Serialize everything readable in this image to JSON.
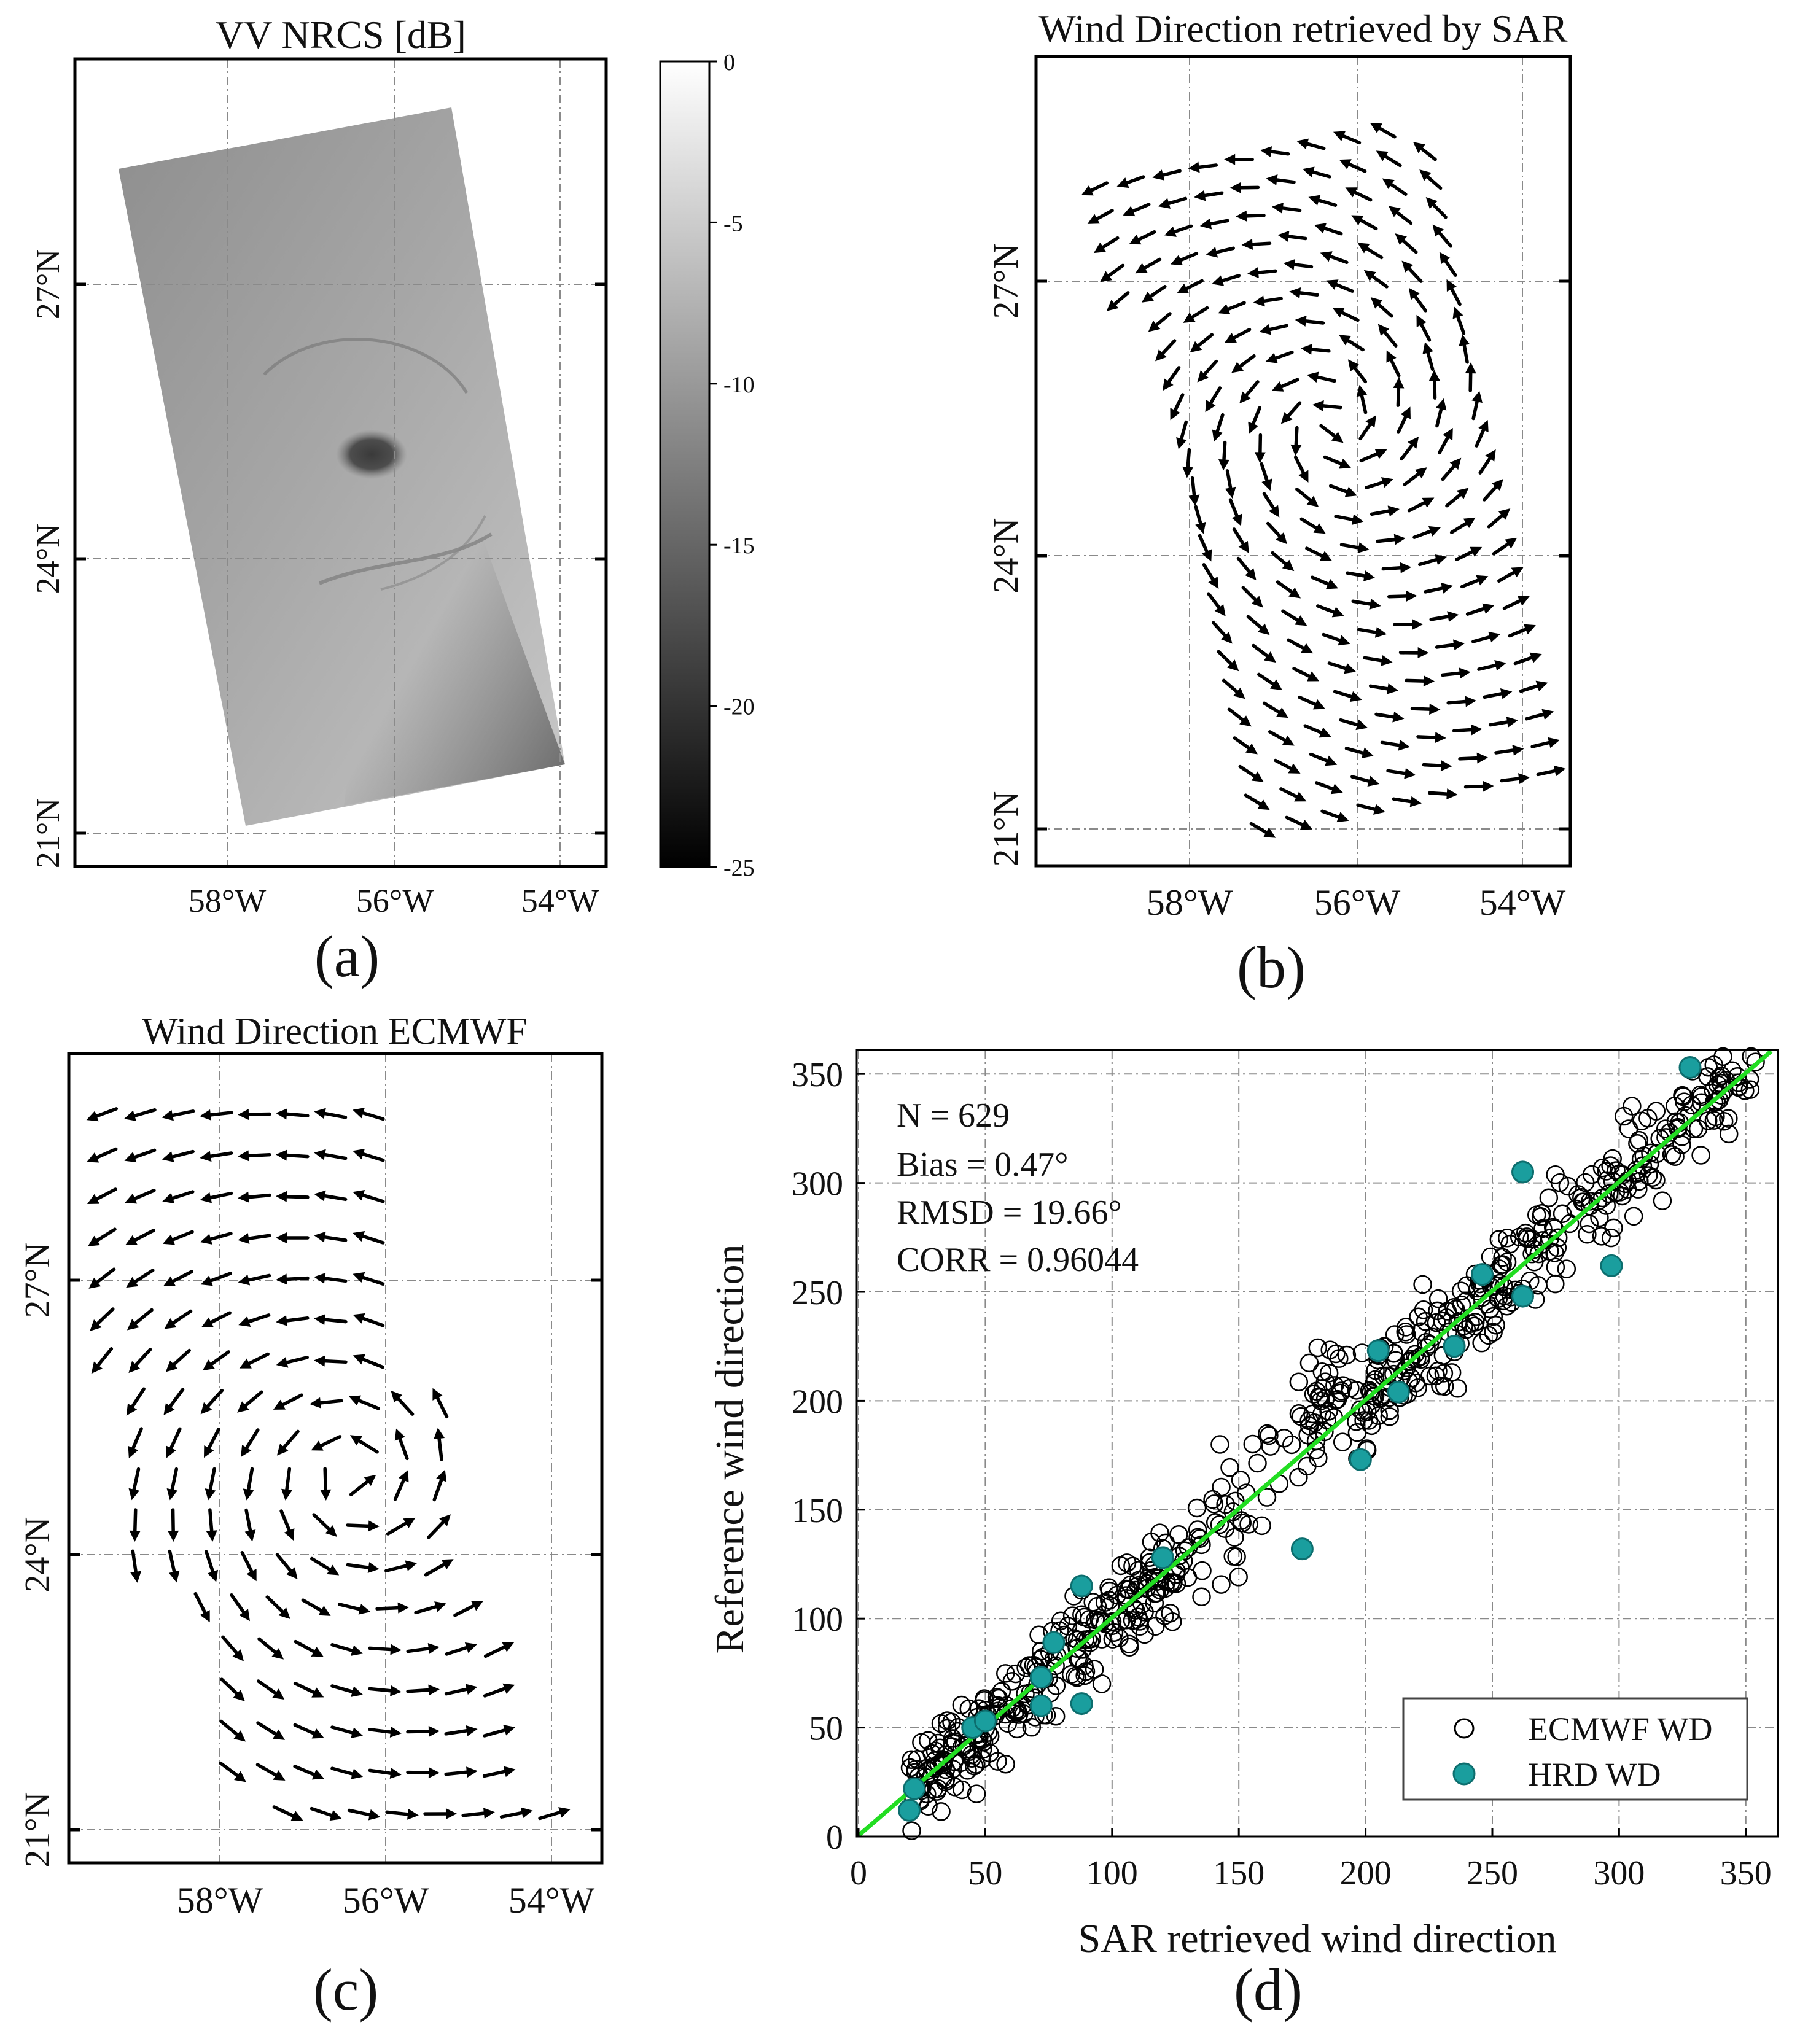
{
  "panel_a": {
    "title": "VV NRCS [dB]",
    "label": "(a)",
    "colorbar_ticks": [
      "0",
      "-5",
      "-10",
      "-15",
      "-20",
      "-25"
    ],
    "lat_ticks": [
      "27°N",
      "24°N",
      "21°N"
    ],
    "lon_ticks": [
      "58°W",
      "56°W",
      "54°W"
    ]
  },
  "panel_b": {
    "title": "Wind Direction retrieved by SAR",
    "label": "(b)",
    "lat_ticks": [
      "27°N",
      "24°N",
      "21°N"
    ],
    "lon_ticks": [
      "58°W",
      "56°W",
      "54°W"
    ]
  },
  "panel_c": {
    "title": "Wind Direction ECMWF",
    "label": "(c)",
    "lat_ticks": [
      "27°N",
      "24°N",
      "21°N"
    ],
    "lon_ticks": [
      "58°W",
      "56°W",
      "54°W"
    ]
  },
  "panel_d": {
    "label": "(d)",
    "stats": {
      "n": "N = 629",
      "bias": "Bias = 0.47°",
      "rmsd": "RMSD = 19.66°",
      "corr": "CORR = 0.96044"
    },
    "legend": {
      "ecmwf": "ECMWF WD",
      "hrd": "HRD WD"
    }
  },
  "colors": {
    "hrd": "#1a9e9e",
    "fit_line": "#22dd22"
  },
  "chart_data": [
    {
      "type": "image",
      "title": "VV NRCS [dB]",
      "colorbar_range": [
        -25,
        0
      ],
      "x_ticks": [
        "58°W",
        "56°W",
        "54°W"
      ],
      "y_ticks": [
        "27°N",
        "24°N",
        "21°N"
      ]
    },
    {
      "type": "quiver",
      "title": "Wind Direction retrieved by SAR",
      "x_ticks": [
        "58°W",
        "56°W",
        "54°W"
      ],
      "y_ticks": [
        "27°N",
        "24°N",
        "21°N"
      ],
      "vortex_center_deg": {
        "lon": -56.6,
        "lat": 25.3
      }
    },
    {
      "type": "quiver",
      "title": "Wind Direction ECMWF",
      "x_ticks": [
        "58°W",
        "56°W",
        "54°W"
      ],
      "y_ticks": [
        "27°N",
        "24°N",
        "21°N"
      ],
      "vortex_center_deg": {
        "lon": -56.2,
        "lat": 24.9
      }
    },
    {
      "type": "scatter",
      "xlabel": "SAR retrieved wind direction",
      "ylabel": "Reference wind direction",
      "xlim": [
        0,
        360
      ],
      "ylim": [
        0,
        360
      ],
      "x_ticks": [
        0,
        50,
        100,
        150,
        200,
        250,
        300,
        350
      ],
      "y_ticks": [
        0,
        50,
        100,
        150,
        200,
        250,
        300,
        350
      ],
      "grid": true,
      "legend_position": "bottom-right",
      "fit_line": {
        "slope": 1.0,
        "intercept": 0.47
      },
      "series": [
        {
          "name": "ECMWF WD",
          "marker": "open-circle",
          "count": 629,
          "bias_deg": 0.47,
          "rmsd_deg": 19.66
        },
        {
          "name": "HRD WD",
          "marker": "filled-circle",
          "x": [
            20,
            22,
            45,
            50,
            72,
            72,
            77,
            88,
            88,
            120,
            198,
            205,
            213,
            235,
            246,
            262,
            262,
            297,
            328,
            175
          ],
          "y": [
            12,
            22,
            50,
            53,
            73,
            60,
            89,
            61,
            115,
            128,
            173,
            223,
            204,
            225,
            258,
            305,
            248,
            262,
            353,
            132
          ]
        }
      ]
    }
  ]
}
